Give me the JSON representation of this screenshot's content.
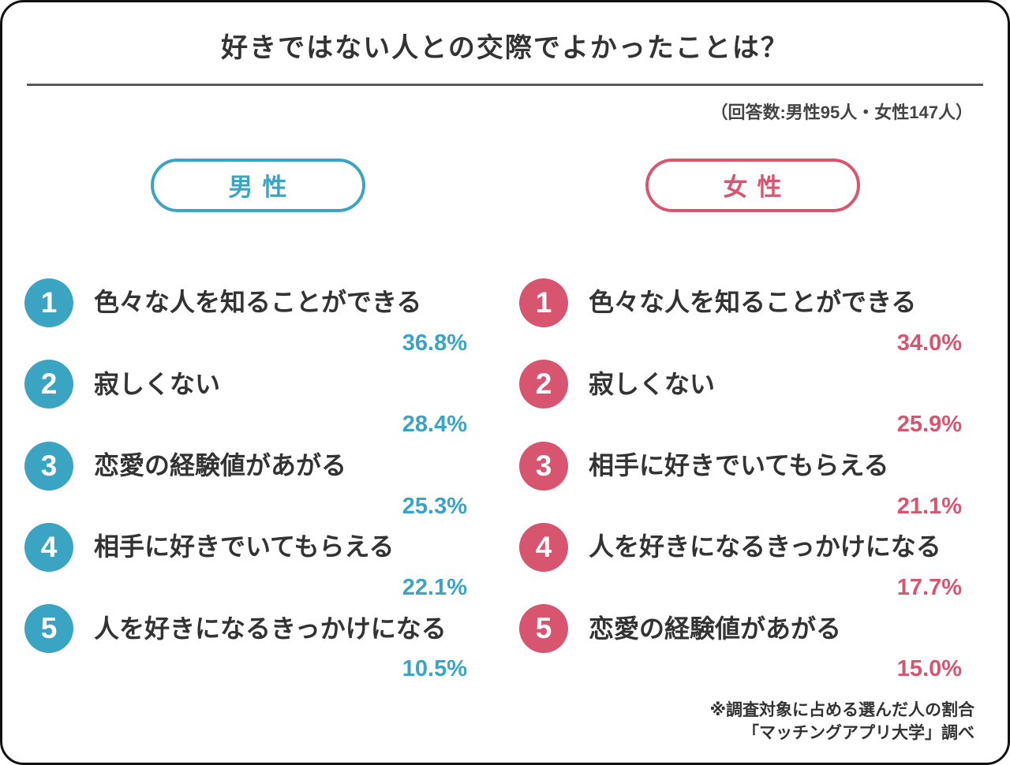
{
  "colors": {
    "male_accent": "#3ba4c2",
    "female_accent": "#d85570",
    "text": "#333333",
    "divider": "#595959",
    "frame_border": "#111111"
  },
  "chart_data": {
    "type": "table",
    "title": "好きではない人との交際でよかったことは？",
    "respondents_note": "（回答数:男性95人・女性147人）",
    "legend_position": "top",
    "value_unit": "%",
    "groups": [
      {
        "name": "男性",
        "respondents": 95,
        "color": "#3ba4c2",
        "items": [
          {
            "rank": "1",
            "label": "色々な人を知ることができる",
            "percent": "36.8%",
            "value": 36.8
          },
          {
            "rank": "2",
            "label": "寂しくない",
            "percent": "28.4%",
            "value": 28.4
          },
          {
            "rank": "3",
            "label": "恋愛の経験値があがる",
            "percent": "25.3%",
            "value": 25.3
          },
          {
            "rank": "4",
            "label": "相手に好きでいてもらえる",
            "percent": "22.1%",
            "value": 22.1
          },
          {
            "rank": "5",
            "label": "人を好きになるきっかけになる",
            "percent": "10.5%",
            "value": 10.5
          }
        ]
      },
      {
        "name": "女性",
        "respondents": 147,
        "color": "#d85570",
        "items": [
          {
            "rank": "1",
            "label": "色々な人を知ることができる",
            "percent": "34.0%",
            "value": 34.0
          },
          {
            "rank": "2",
            "label": "寂しくない",
            "percent": "25.9%",
            "value": 25.9
          },
          {
            "rank": "3",
            "label": "相手に好きでいてもらえる",
            "percent": "21.1%",
            "value": 21.1
          },
          {
            "rank": "4",
            "label": "人を好きになるきっかけになる",
            "percent": "17.7%",
            "value": 17.7
          },
          {
            "rank": "5",
            "label": "恋愛の経験値があがる",
            "percent": "15.0%",
            "value": 15.0
          }
        ]
      }
    ],
    "footnotes": [
      "※調査対象に占める選んだ人の割合",
      "「マッチングアプリ大学」調べ"
    ]
  }
}
